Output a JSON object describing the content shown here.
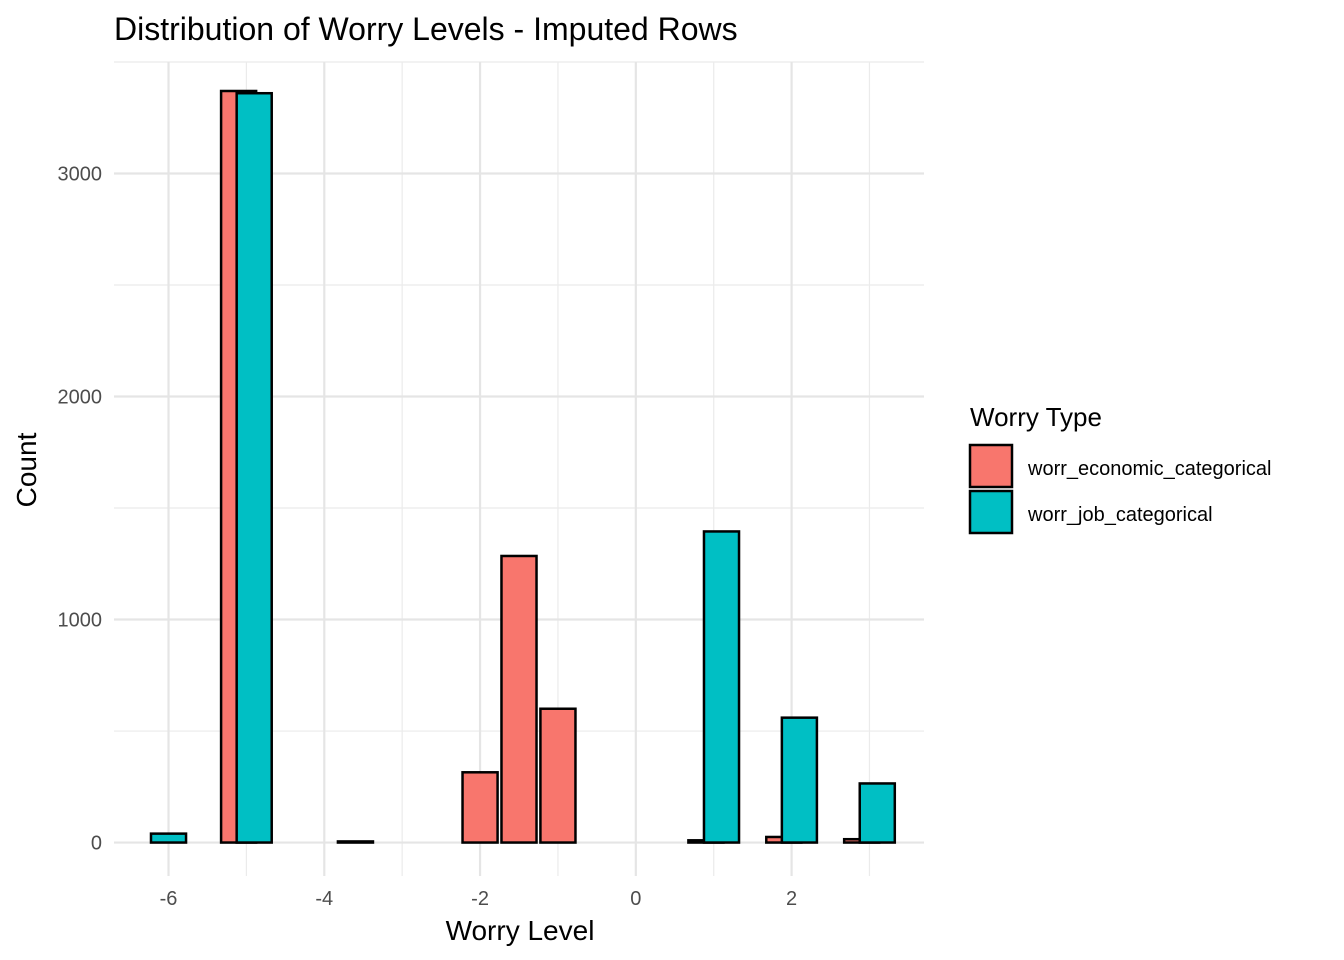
{
  "chart_data": {
    "type": "bar",
    "title": "Distribution of Worry Levels - Imputed Rows",
    "xlabel": "Worry Level",
    "ylabel": "Count",
    "xlim": [
      -6.7,
      3.7
    ],
    "ylim": [
      -150,
      3500
    ],
    "x_ticks": [
      -6,
      -4,
      -2,
      0,
      2
    ],
    "y_ticks": [
      0,
      1000,
      2000,
      3000
    ],
    "grid": true,
    "bar_width": 0.45,
    "legend": {
      "title": "Worry Type",
      "position": "right"
    },
    "series": [
      {
        "name": "worr_economic_categorical",
        "color": "#F8766D",
        "points": [
          {
            "x": -5.1,
            "y": 3370
          },
          {
            "x": -3.6,
            "y": 5
          },
          {
            "x": -2.0,
            "y": 315
          },
          {
            "x": -1.5,
            "y": 1285
          },
          {
            "x": -1.0,
            "y": 600
          },
          {
            "x": 0.9,
            "y": 10
          },
          {
            "x": 1.9,
            "y": 25
          },
          {
            "x": 2.9,
            "y": 15
          }
        ]
      },
      {
        "name": "worr_job_categorical",
        "color": "#00BFC4",
        "points": [
          {
            "x": -6.0,
            "y": 40
          },
          {
            "x": -4.9,
            "y": 3360
          },
          {
            "x": 1.1,
            "y": 1395
          },
          {
            "x": 2.1,
            "y": 560
          },
          {
            "x": 3.1,
            "y": 265
          }
        ]
      }
    ]
  }
}
